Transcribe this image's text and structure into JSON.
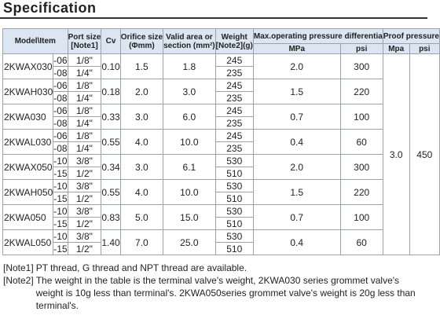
{
  "header": {
    "title": "Specification"
  },
  "table": {
    "columns": [
      "Model\\Item",
      "Port size",
      "[Note1]",
      "Cv",
      "Orifice size",
      "(Φmm)",
      "Valid area or",
      "section (mm²)",
      "Weight",
      "[Note2](g)",
      "Max.operating pressure differentia",
      "Proof pressure"
    ],
    "subcolumns": [
      "MPa",
      "psi",
      "Mpa",
      "psi"
    ],
    "models": [
      {
        "name": "2KWAX030",
        "cv": "0.10",
        "orifice": "1.5",
        "area": "1.8",
        "mpa": "2.0",
        "psi": "300",
        "rows": [
          {
            "suffix": "-06",
            "port": "1/8\"",
            "weight": "245"
          },
          {
            "suffix": "-08",
            "port": "1/4\"",
            "weight": "235"
          }
        ]
      },
      {
        "name": "2KWAH030",
        "cv": "0.18",
        "orifice": "2.0",
        "area": "3.0",
        "mpa": "1.5",
        "psi": "220",
        "rows": [
          {
            "suffix": "-06",
            "port": "1/8\"",
            "weight": "245"
          },
          {
            "suffix": "-08",
            "port": "1/4\"",
            "weight": "235"
          }
        ]
      },
      {
        "name": "2KWA030",
        "cv": "0.33",
        "orifice": "3.0",
        "area": "6.0",
        "mpa": "0.7",
        "psi": "100",
        "rows": [
          {
            "suffix": "-06",
            "port": "1/8\"",
            "weight": "245"
          },
          {
            "suffix": "-08",
            "port": "1/4\"",
            "weight": "235"
          }
        ]
      },
      {
        "name": "2KWAL030",
        "cv": "0.55",
        "orifice": "4.0",
        "area": "10.0",
        "mpa": "0.4",
        "psi": "60",
        "rows": [
          {
            "suffix": "-06",
            "port": "1/8\"",
            "weight": "245"
          },
          {
            "suffix": "-08",
            "port": "1/4\"",
            "weight": "235"
          }
        ]
      },
      {
        "name": "2KWAX050",
        "cv": "0.34",
        "orifice": "3.0",
        "area": "6.1",
        "mpa": "2.0",
        "psi": "300",
        "rows": [
          {
            "suffix": "-10",
            "port": "3/8\"",
            "weight": "530"
          },
          {
            "suffix": "-15",
            "port": "1/2\"",
            "weight": "510"
          }
        ]
      },
      {
        "name": "2KWAH050",
        "cv": "0.55",
        "orifice": "4.0",
        "area": "10.0",
        "mpa": "1.5",
        "psi": "220",
        "rows": [
          {
            "suffix": "-10",
            "port": "3/8\"",
            "weight": "530"
          },
          {
            "suffix": "-15",
            "port": "1/2\"",
            "weight": "510"
          }
        ]
      },
      {
        "name": "2KWA050",
        "cv": "0.83",
        "orifice": "5.0",
        "area": "15.0",
        "mpa": "0.7",
        "psi": "100",
        "rows": [
          {
            "suffix": "-10",
            "port": "3/8\"",
            "weight": "530"
          },
          {
            "suffix": "-15",
            "port": "1/2\"",
            "weight": "510"
          }
        ]
      },
      {
        "name": "2KWAL050",
        "cv": "1.40",
        "orifice": "7.0",
        "area": "25.0",
        "mpa": "0.4",
        "psi": "60",
        "rows": [
          {
            "suffix": "-10",
            "port": "3/8\"",
            "weight": "530"
          },
          {
            "suffix": "-15",
            "port": "1/2\"",
            "weight": "510"
          }
        ]
      }
    ],
    "proof": {
      "mpa": "3.0",
      "psi": "450"
    }
  },
  "notes": [
    {
      "label": "[Note1]",
      "text": "PT thread, G thread and NPT thread are available."
    },
    {
      "label": "[Note2]",
      "text": "The weight in the table is the terminal valve's weight, 2KWA030 series grommet valve's weight is 10g less than terminal's. 2KWA050series grommet valve's weight is 20g less than terminal's."
    }
  ]
}
